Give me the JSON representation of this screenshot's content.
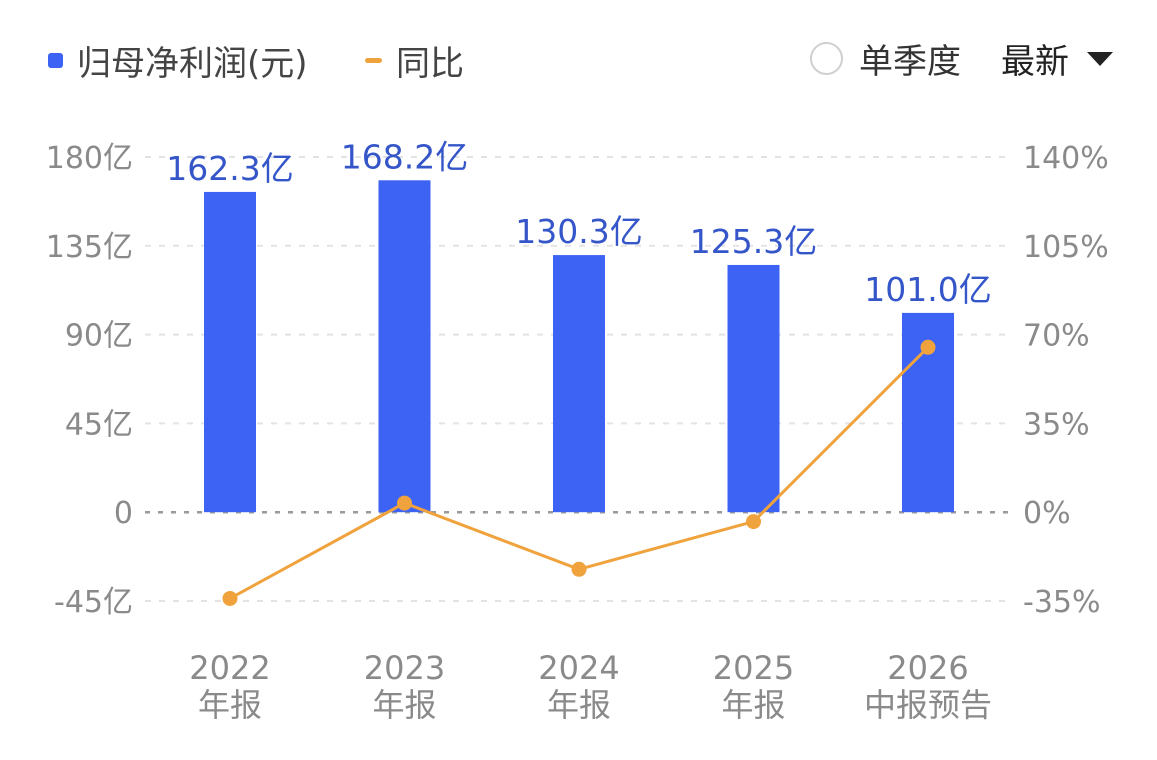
{
  "legend": {
    "bar_label": "归母净利润(元)",
    "line_label": "同比"
  },
  "controls": {
    "quarter_label": "单季度",
    "latest_label": "最新"
  },
  "colors": {
    "bar": "#3d63f5",
    "line": "#f0a23c",
    "value_label": "#3556c9",
    "grid": "#e3e3e3",
    "zero_line": "#9a9a9a"
  },
  "chart_data": {
    "type": "bar",
    "categories": [
      [
        "2022",
        "年报"
      ],
      [
        "2023",
        "年报"
      ],
      [
        "2024",
        "年报"
      ],
      [
        "2025",
        "年报"
      ],
      [
        "2026",
        "中报预告"
      ]
    ],
    "series": [
      {
        "name": "归母净利润(元)",
        "type": "bar",
        "axis": "left",
        "values": [
          162.3,
          168.2,
          130.3,
          125.3,
          101.0
        ],
        "labels": [
          "162.3亿",
          "168.2亿",
          "130.3亿",
          "125.3亿",
          "101.0亿"
        ]
      },
      {
        "name": "同比",
        "type": "line",
        "axis": "right",
        "values": [
          -34.0,
          3.6,
          -22.5,
          -3.7,
          65.0
        ]
      }
    ],
    "y_left": {
      "ticks": [
        180,
        135,
        90,
        45,
        0,
        -45
      ],
      "tick_labels": [
        "180亿",
        "135亿",
        "90亿",
        "45亿",
        "0",
        "-45亿"
      ],
      "range": [
        -45,
        180
      ]
    },
    "y_right": {
      "ticks": [
        140,
        105,
        70,
        35,
        0,
        -35
      ],
      "tick_labels": [
        "140%",
        "105%",
        "70%",
        "35%",
        "0%",
        "-35%"
      ],
      "range": [
        -35,
        140
      ]
    },
    "grid": true,
    "legend_position": "top-left"
  }
}
